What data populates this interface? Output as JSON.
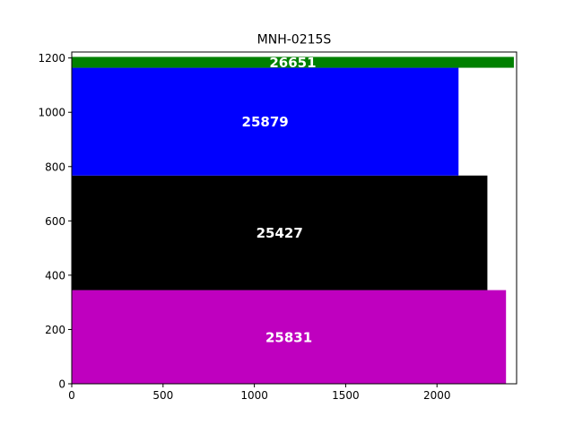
{
  "chart_data": {
    "type": "bar",
    "orientation": "horizontal",
    "title": "MNH-0215S",
    "xlabel": "",
    "ylabel": "",
    "xlim": [
      0,
      2436
    ],
    "ylim": [
      0,
      1222
    ],
    "xticks": [
      0,
      500,
      1000,
      1500,
      2000
    ],
    "yticks": [
      0,
      200,
      400,
      600,
      800,
      1000,
      1200
    ],
    "grid": false,
    "bars": [
      {
        "label": "25831",
        "start": 0,
        "end": 345,
        "length": 2378,
        "color": "#bf00bf"
      },
      {
        "label": "25427",
        "start": 345,
        "end": 767,
        "length": 2276,
        "color": "#000000"
      },
      {
        "label": "25879",
        "start": 767,
        "end": 1164,
        "length": 2118,
        "color": "#0000ff"
      },
      {
        "label": "26651",
        "start": 1164,
        "end": 1204,
        "length": 2421,
        "color": "#008000"
      }
    ]
  }
}
